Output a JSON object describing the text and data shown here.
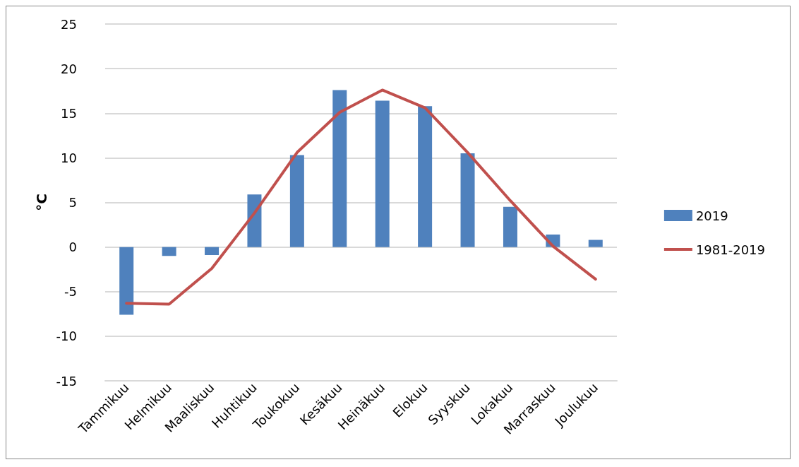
{
  "chart_data": {
    "type": "bar",
    "ylabel": "°C",
    "categories": [
      "Tammikuu",
      "Helmikuu",
      "Maaliskuu",
      "Huhtikuu",
      "Toukokuu",
      "Kesäkuu",
      "Heinäkuu",
      "Elokuu",
      "Syyskuu",
      "Lokakuu",
      "Marraskuu",
      "Joulukuu"
    ],
    "series": [
      {
        "name": "2019",
        "color": "#4f81bd",
        "values": [
          -7.6,
          -1.0,
          -0.9,
          5.9,
          10.3,
          17.6,
          16.4,
          15.8,
          10.5,
          4.5,
          1.4,
          0.8
        ]
      },
      {
        "name": "1981-2019",
        "type": "line",
        "color": "#c0504d",
        "values": [
          -6.3,
          -6.4,
          -2.4,
          3.8,
          10.6,
          15.1,
          17.6,
          15.6,
          10.6,
          5.2,
          0.1,
          -3.6
        ]
      }
    ],
    "ylim": [
      -15,
      25
    ],
    "yticks": [
      -15,
      -10,
      -5,
      0,
      5,
      10,
      15,
      20,
      25
    ],
    "grid": "y",
    "legend": "right",
    "marker": "none"
  }
}
